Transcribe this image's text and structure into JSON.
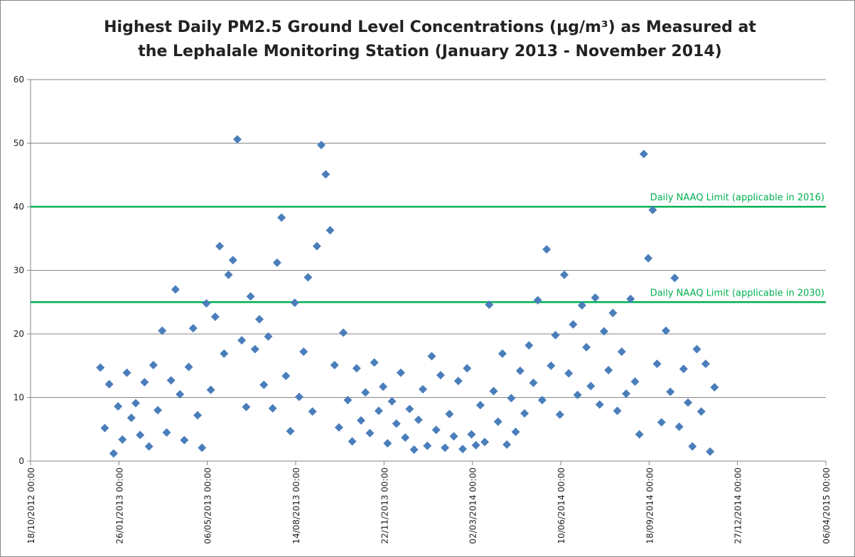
{
  "chart_data": {
    "type": "scatter",
    "title": "Highest Daily PM2.5 Ground Level Concentrations  (µg/m³) as Measured at the Lephalale Monitoring Station (January 2013 - November 2014)",
    "color": "#4a7ebb",
    "grid": true,
    "xlim": [
      "2012-10-18",
      "2015-04-06"
    ],
    "ylim": [
      0,
      60
    ],
    "yticks": [
      0,
      10,
      20,
      30,
      40,
      50,
      60
    ],
    "xticks": [
      {
        "value": "2012-10-18",
        "label": "18/10/2012 00:00"
      },
      {
        "value": "2013-01-26",
        "label": "26/01/2013 00:00"
      },
      {
        "value": "2013-05-06",
        "label": "06/05/2013 00:00"
      },
      {
        "value": "2013-08-14",
        "label": "14/08/2013 00:00"
      },
      {
        "value": "2013-11-22",
        "label": "22/11/2013 00:00"
      },
      {
        "value": "2014-03-02",
        "label": "02/03/2014 00:00"
      },
      {
        "value": "2014-06-10",
        "label": "10/06/2014 00:00"
      },
      {
        "value": "2014-09-18",
        "label": "18/09/2014 00:00"
      },
      {
        "value": "2014-12-27",
        "label": "27/12/2014 00:00"
      },
      {
        "value": "2015-04-06",
        "label": "06/04/2015 00:00"
      }
    ],
    "reference_lines": [
      {
        "value": 40,
        "label": "Daily NAAQ Limit (applicable in 2016)",
        "color": "#00b050"
      },
      {
        "value": 25,
        "label": "Daily NAAQ Limit (applicable in 2030)",
        "color": "#00b050"
      }
    ],
    "x": [
      "2013-01-05",
      "2013-01-10",
      "2013-01-15",
      "2013-01-20",
      "2013-01-25",
      "2013-01-30",
      "2013-02-04",
      "2013-02-09",
      "2013-02-14",
      "2013-02-19",
      "2013-02-24",
      "2013-03-01",
      "2013-03-06",
      "2013-03-11",
      "2013-03-16",
      "2013-03-21",
      "2013-03-26",
      "2013-03-31",
      "2013-04-05",
      "2013-04-10",
      "2013-04-15",
      "2013-04-20",
      "2013-04-25",
      "2013-04-30",
      "2013-05-05",
      "2013-05-10",
      "2013-05-15",
      "2013-05-20",
      "2013-05-25",
      "2013-05-30",
      "2013-06-04",
      "2013-06-09",
      "2013-06-14",
      "2013-06-19",
      "2013-06-24",
      "2013-06-29",
      "2013-07-04",
      "2013-07-09",
      "2013-07-14",
      "2013-07-19",
      "2013-07-24",
      "2013-07-29",
      "2013-08-03",
      "2013-08-08",
      "2013-08-13",
      "2013-08-18",
      "2013-08-23",
      "2013-08-28",
      "2013-09-02",
      "2013-09-07",
      "2013-09-12",
      "2013-09-17",
      "2013-09-22",
      "2013-09-27",
      "2013-10-02",
      "2013-10-07",
      "2013-10-12",
      "2013-10-17",
      "2013-10-22",
      "2013-10-27",
      "2013-11-01",
      "2013-11-06",
      "2013-11-11",
      "2013-11-16",
      "2013-11-21",
      "2013-11-26",
      "2013-12-01",
      "2013-12-06",
      "2013-12-11",
      "2013-12-16",
      "2013-12-21",
      "2013-12-26",
      "2013-12-31",
      "2014-01-05",
      "2014-01-10",
      "2014-01-15",
      "2014-01-20",
      "2014-01-25",
      "2014-01-30",
      "2014-02-04",
      "2014-02-09",
      "2014-02-14",
      "2014-02-19",
      "2014-02-24",
      "2014-03-01",
      "2014-03-06",
      "2014-03-11",
      "2014-03-16",
      "2014-03-21",
      "2014-03-26",
      "2014-03-31",
      "2014-04-05",
      "2014-04-10",
      "2014-04-15",
      "2014-04-20",
      "2014-04-25",
      "2014-04-30",
      "2014-05-05",
      "2014-05-10",
      "2014-05-15",
      "2014-05-20",
      "2014-05-25",
      "2014-05-30",
      "2014-06-04",
      "2014-06-09",
      "2014-06-14",
      "2014-06-19",
      "2014-06-24",
      "2014-06-29",
      "2014-07-04",
      "2014-07-09",
      "2014-07-14",
      "2014-07-19",
      "2014-07-24",
      "2014-07-29",
      "2014-08-03",
      "2014-08-08",
      "2014-08-13",
      "2014-08-18",
      "2014-08-23",
      "2014-08-28",
      "2014-09-02",
      "2014-09-07",
      "2014-09-12",
      "2014-09-17",
      "2014-09-22",
      "2014-09-27",
      "2014-10-02",
      "2014-10-07",
      "2014-10-12",
      "2014-10-17",
      "2014-10-22",
      "2014-10-27",
      "2014-11-01",
      "2014-11-06",
      "2014-11-11",
      "2014-11-16",
      "2014-11-21",
      "2014-11-26",
      "2014-12-01"
    ],
    "values": [
      14.7,
      5.2,
      12.1,
      1.2,
      8.6,
      3.4,
      13.9,
      6.8,
      9.1,
      4.1,
      12.4,
      2.3,
      15.1,
      8.0,
      20.5,
      4.5,
      12.7,
      27.0,
      10.5,
      3.3,
      14.8,
      20.9,
      7.2,
      2.1,
      24.8,
      11.2,
      22.7,
      33.8,
      16.9,
      29.3,
      31.6,
      50.6,
      19.0,
      8.5,
      25.9,
      17.6,
      22.3,
      12.0,
      19.6,
      8.3,
      31.2,
      38.3,
      13.4,
      4.7,
      24.9,
      10.1,
      17.2,
      28.9,
      7.8,
      33.8,
      49.7,
      45.1,
      36.3,
      15.1,
      5.3,
      20.2,
      9.6,
      3.1,
      14.6,
      6.4,
      10.8,
      4.4,
      15.5,
      7.9,
      11.7,
      2.8,
      9.4,
      5.9,
      13.9,
      3.7,
      8.2,
      1.8,
      6.5,
      11.3,
      2.4,
      16.5,
      4.9,
      13.5,
      2.1,
      7.4,
      3.9,
      12.6,
      1.9,
      14.6,
      4.2,
      2.5,
      8.8,
      3.0,
      24.6,
      11.0,
      6.2,
      16.9,
      2.6,
      9.9,
      4.6,
      14.2,
      7.5,
      18.2,
      12.3,
      25.3,
      9.6,
      33.3,
      15.0,
      19.8,
      7.3,
      29.3,
      13.8,
      21.5,
      10.4,
      24.5,
      17.9,
      11.8,
      25.7,
      8.9,
      20.4,
      14.3,
      23.3,
      7.9,
      17.2,
      10.6,
      25.5,
      12.5,
      4.2,
      48.3,
      31.9,
      39.5,
      15.3,
      6.1,
      20.5,
      10.9,
      28.8,
      5.4,
      14.5,
      9.2,
      2.3,
      17.6,
      7.8,
      15.3,
      1.5,
      11.6
    ]
  }
}
